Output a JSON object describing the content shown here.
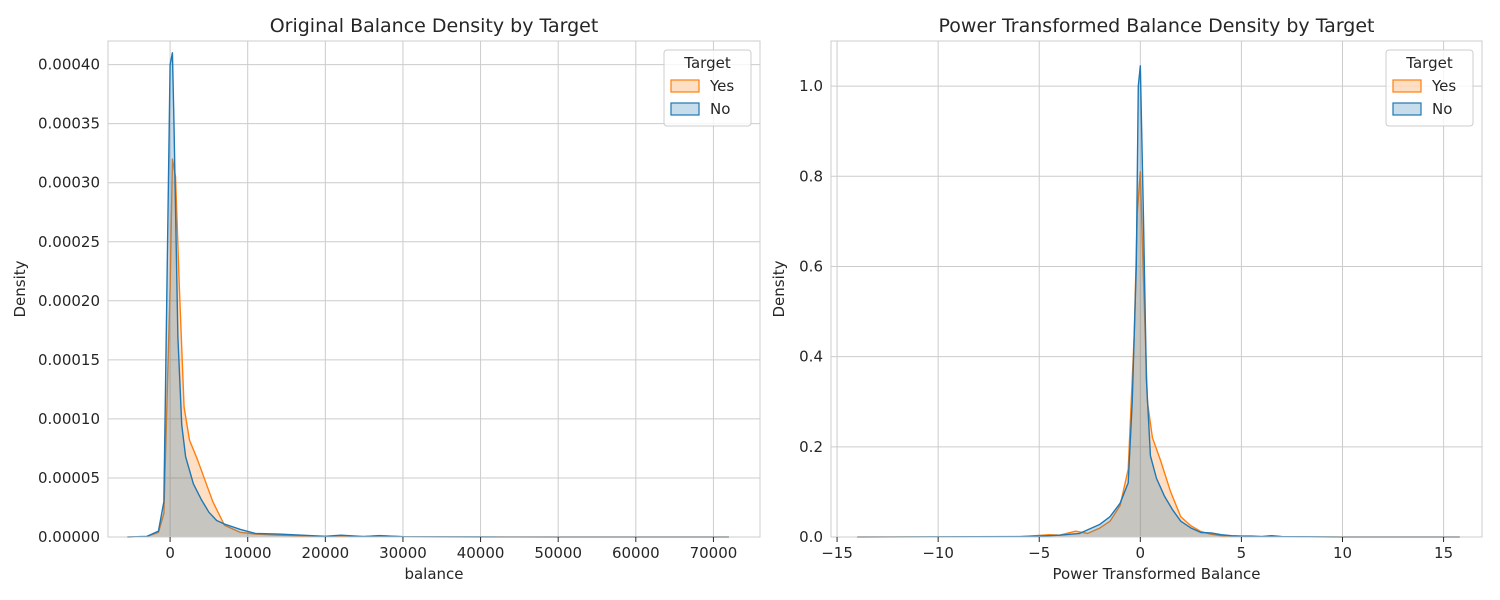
{
  "chart_data": [
    {
      "type": "area",
      "title": "Original Balance Density by Target",
      "xlabel": "balance",
      "ylabel": "Density",
      "xlim": [
        -8000,
        76000
      ],
      "ylim": [
        0,
        0.00042
      ],
      "xticks": [
        0,
        10000,
        20000,
        30000,
        40000,
        50000,
        60000,
        70000
      ],
      "xtick_labels": [
        "0",
        "10000",
        "20000",
        "30000",
        "40000",
        "50000",
        "60000",
        "70000"
      ],
      "yticks": [
        0,
        5e-05,
        0.0001,
        0.00015,
        0.0002,
        0.00025,
        0.0003,
        0.00035,
        0.0004
      ],
      "ytick_labels": [
        "0.00000",
        "0.00005",
        "0.00010",
        "0.00015",
        "0.00020",
        "0.00025",
        "0.00030",
        "0.00035",
        "0.00040"
      ],
      "grid": true,
      "legend": {
        "title": "Target",
        "position": "top-right"
      },
      "series": [
        {
          "name": "Yes",
          "color": "#ff7f0e",
          "x": [
            -5500,
            -3000,
            -1500,
            -800,
            0,
            300,
            700,
            1200,
            1800,
            2500,
            3500,
            4500,
            5500,
            7000,
            9000,
            11000,
            14000,
            17000,
            20000,
            25000,
            27000,
            30000,
            40000,
            50000,
            60000,
            72000
          ],
          "y": [
            0,
            5e-07,
            4e-06,
            2e-05,
            0.00021,
            0.00032,
            0.000305,
            0.00021,
            0.00011,
            8.2e-05,
            6.6e-05,
            4.8e-05,
            3e-05,
            1e-05,
            4e-06,
            2.5e-06,
            1.5e-06,
            1e-06,
            3e-07,
            5e-07,
            1e-06,
            2e-07,
            0,
            0,
            0,
            0
          ]
        },
        {
          "name": "No",
          "color": "#1f77b4",
          "x": [
            -5500,
            -3000,
            -1500,
            -800,
            0,
            300,
            500,
            1000,
            1500,
            2000,
            3000,
            4000,
            5000,
            6000,
            7000,
            9000,
            11000,
            14000,
            17000,
            20000,
            22000,
            25000,
            27000,
            30000,
            40000,
            50000,
            60000,
            72000
          ],
          "y": [
            0,
            5e-07,
            5e-06,
            3e-05,
            0.0004,
            0.00041,
            0.00035,
            0.00017,
            9.5e-05,
            6.8e-05,
            4.5e-05,
            3.2e-05,
            2.1e-05,
            1.4e-05,
            1.1e-05,
            6.5e-06,
            3e-06,
            2.5e-06,
            1.5e-06,
            6e-07,
            1.5e-06,
            4e-07,
            1.2e-06,
            2e-07,
            1e-07,
            0,
            0,
            0
          ]
        }
      ]
    },
    {
      "type": "area",
      "title": "Power Transformed Balance Density by Target",
      "xlabel": "Power Transformed Balance",
      "ylabel": "Density",
      "xlim": [
        -15.3,
        16.9
      ],
      "ylim": [
        0,
        1.1
      ],
      "xticks": [
        -15,
        -10,
        -5,
        0,
        5,
        10,
        15
      ],
      "xtick_labels": [
        "−15",
        "−10",
        "−5",
        "0",
        "5",
        "10",
        "15"
      ],
      "yticks": [
        0,
        0.2,
        0.4,
        0.6,
        0.8,
        1.0
      ],
      "ytick_labels": [
        "0.0",
        "0.2",
        "0.4",
        "0.6",
        "0.8",
        "1.0"
      ],
      "grid": true,
      "legend": {
        "title": "Target",
        "position": "top-right"
      },
      "series": [
        {
          "name": "Yes",
          "color": "#ff7f0e",
          "x": [
            -14,
            -6,
            -4.5,
            -4,
            -3.2,
            -2.6,
            -2,
            -1.5,
            -1,
            -0.6,
            -0.3,
            -0.15,
            0,
            0.15,
            0.35,
            0.6,
            1,
            1.5,
            2,
            2.5,
            3,
            3.5,
            4,
            5,
            6,
            7,
            10,
            15.8
          ],
          "y": [
            0,
            0.0005,
            0.005,
            0.004,
            0.013,
            0.008,
            0.02,
            0.035,
            0.07,
            0.15,
            0.45,
            0.72,
            0.81,
            0.58,
            0.3,
            0.22,
            0.17,
            0.1,
            0.045,
            0.025,
            0.012,
            0.006,
            0.003,
            0.001,
            0.001,
            0.0005,
            0,
            0
          ]
        },
        {
          "name": "No",
          "color": "#1f77b4",
          "x": [
            -14,
            -6,
            -4.5,
            -4,
            -3,
            -2,
            -1.5,
            -1,
            -0.6,
            -0.4,
            -0.2,
            -0.1,
            0,
            0.15,
            0.3,
            0.5,
            0.8,
            1.2,
            1.6,
            2,
            2.5,
            3,
            3.5,
            4,
            4.5,
            5,
            5.5,
            6,
            6.5,
            7,
            10,
            15.8
          ],
          "y": [
            0,
            0.001,
            0.003,
            0.004,
            0.008,
            0.028,
            0.045,
            0.075,
            0.12,
            0.3,
            0.6,
            1.0,
            1.045,
            0.72,
            0.35,
            0.18,
            0.13,
            0.09,
            0.06,
            0.035,
            0.02,
            0.01,
            0.009,
            0.005,
            0.003,
            0.002,
            0.002,
            0.001,
            0.003,
            0.001,
            0,
            0
          ]
        }
      ]
    }
  ]
}
